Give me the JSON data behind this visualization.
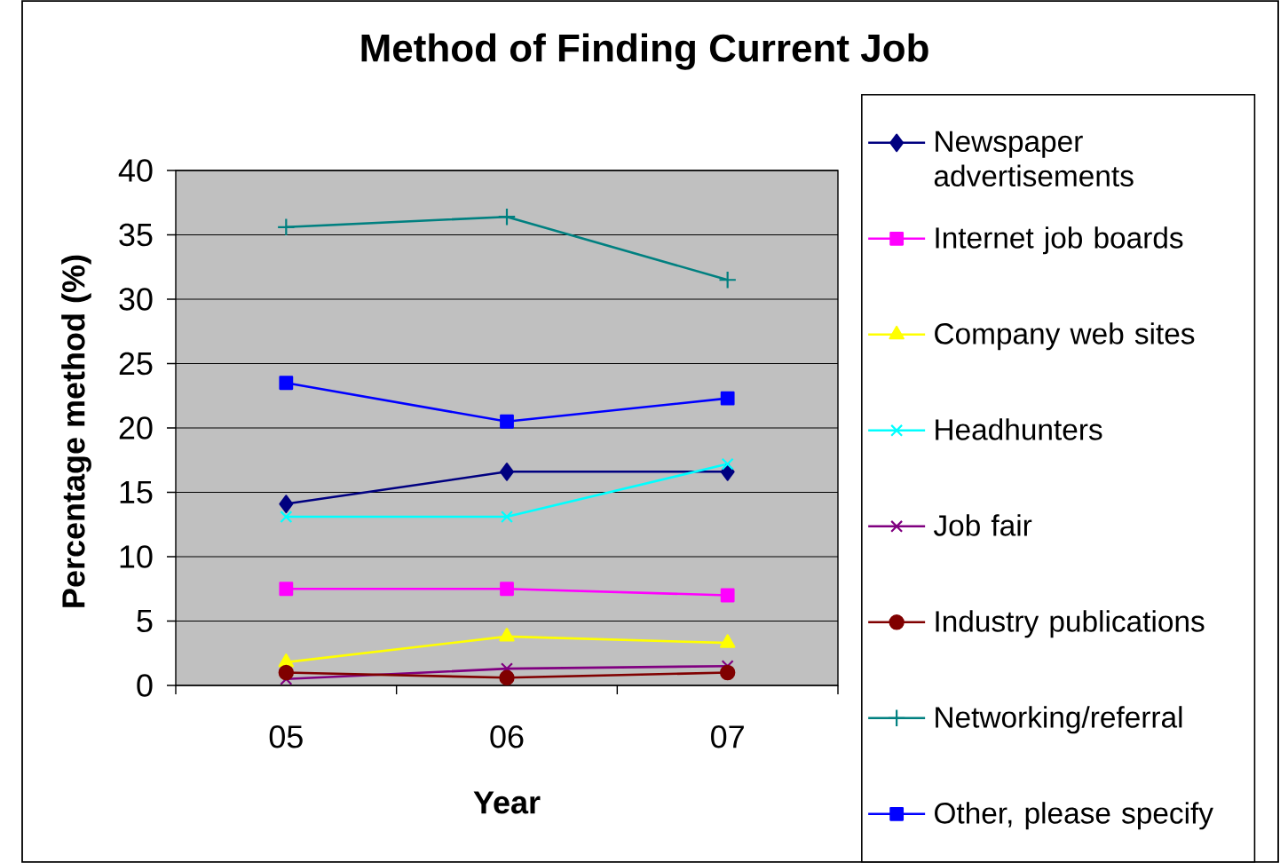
{
  "chart_data": {
    "type": "line",
    "title": "Method of Finding Current Job",
    "xlabel": "Year",
    "ylabel": "Percentage method (%)",
    "categories": [
      "05",
      "06",
      "07"
    ],
    "series": [
      {
        "name": "Newspaper advertisements",
        "color": "#000080",
        "marker": "diamond",
        "values": [
          14.1,
          16.6,
          16.6
        ]
      },
      {
        "name": "Internet job boards",
        "color": "#ff00ff",
        "marker": "square",
        "values": [
          7.5,
          7.5,
          7.0
        ]
      },
      {
        "name": "Company web sites",
        "color": "#ffff00",
        "marker": "triangle",
        "values": [
          1.8,
          3.8,
          3.3
        ]
      },
      {
        "name": "Headhunters",
        "color": "#00ffff",
        "marker": "cross",
        "values": [
          13.1,
          13.1,
          17.2
        ]
      },
      {
        "name": "Job fair",
        "color": "#800080",
        "marker": "cross",
        "values": [
          0.5,
          1.3,
          1.5
        ]
      },
      {
        "name": "Industry publications",
        "color": "#800000",
        "marker": "circle",
        "values": [
          1.0,
          0.6,
          1.0
        ]
      },
      {
        "name": "Networking/referral",
        "color": "#008080",
        "marker": "plus",
        "values": [
          35.6,
          36.4,
          31.5
        ]
      },
      {
        "name": "Other, please specify",
        "color": "#0000ff",
        "marker": "square",
        "values": [
          23.5,
          20.5,
          22.3
        ]
      }
    ],
    "ylim": [
      0,
      40
    ],
    "yticks": [
      0,
      5,
      10,
      15,
      20,
      25,
      30,
      35,
      40
    ],
    "grid": "y",
    "legend": "right",
    "line_style": "solid"
  }
}
